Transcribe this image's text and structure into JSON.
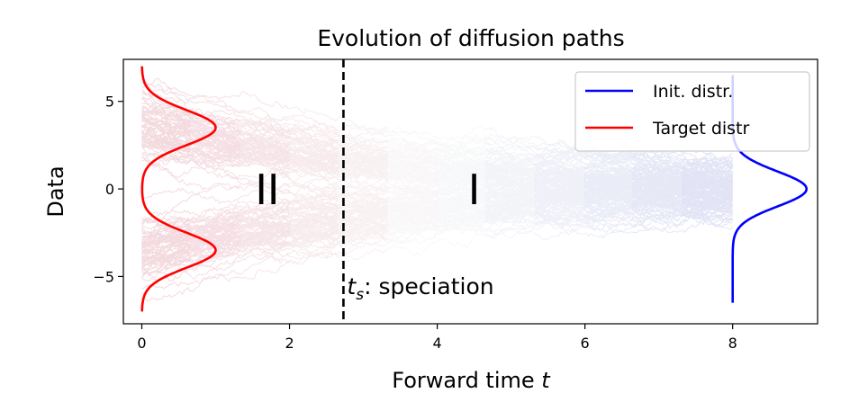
{
  "chart_data": {
    "type": "line",
    "title": "Evolution of diffusion paths",
    "xlabel": "Forward time",
    "xlabel_var": "t",
    "ylabel": "Data",
    "xlim": [
      -0.25,
      9.15
    ],
    "ylim": [
      -7.7,
      7.4
    ],
    "xticks": [
      0,
      2,
      4,
      6,
      8
    ],
    "yticks": [
      -5,
      0,
      5
    ],
    "xtick_labels": [
      "0",
      "2",
      "4",
      "6",
      "8"
    ],
    "ytick_labels": [
      "−5",
      "0",
      "5"
    ],
    "grid": false,
    "legend": {
      "placement": "top-right",
      "entries": [
        {
          "label": "Init. distr.",
          "color": "#0000ff"
        },
        {
          "label": "Target distr",
          "color": "#ff0000"
        }
      ]
    },
    "speciation": {
      "x": 2.73,
      "label_var": "t",
      "label_sub": "s",
      "label_text": ": speciation"
    },
    "regions": [
      {
        "label": "II",
        "x": 1.7,
        "y": 0
      },
      {
        "label": "I",
        "x": 4.5,
        "y": 0
      }
    ],
    "paths": {
      "t_end": 8,
      "mode_centers": [
        3.5,
        -3.5
      ],
      "end_spread": 1.0,
      "color_start": "#b40426",
      "color_mid": "#dddddd",
      "color_end": "#3b4cc0"
    },
    "target_density": {
      "color": "#ff0000",
      "means": [
        3.5,
        -3.5
      ],
      "std": 1.0,
      "y_range": [
        -7,
        7
      ],
      "x_offset": 0,
      "peak_height": 1.0
    },
    "init_density": {
      "color": "#0000ff",
      "mean": 0,
      "std": 1.0,
      "y_range": [
        -6.5,
        6.5
      ],
      "x_offset": 8,
      "peak_height": 1.0
    }
  }
}
